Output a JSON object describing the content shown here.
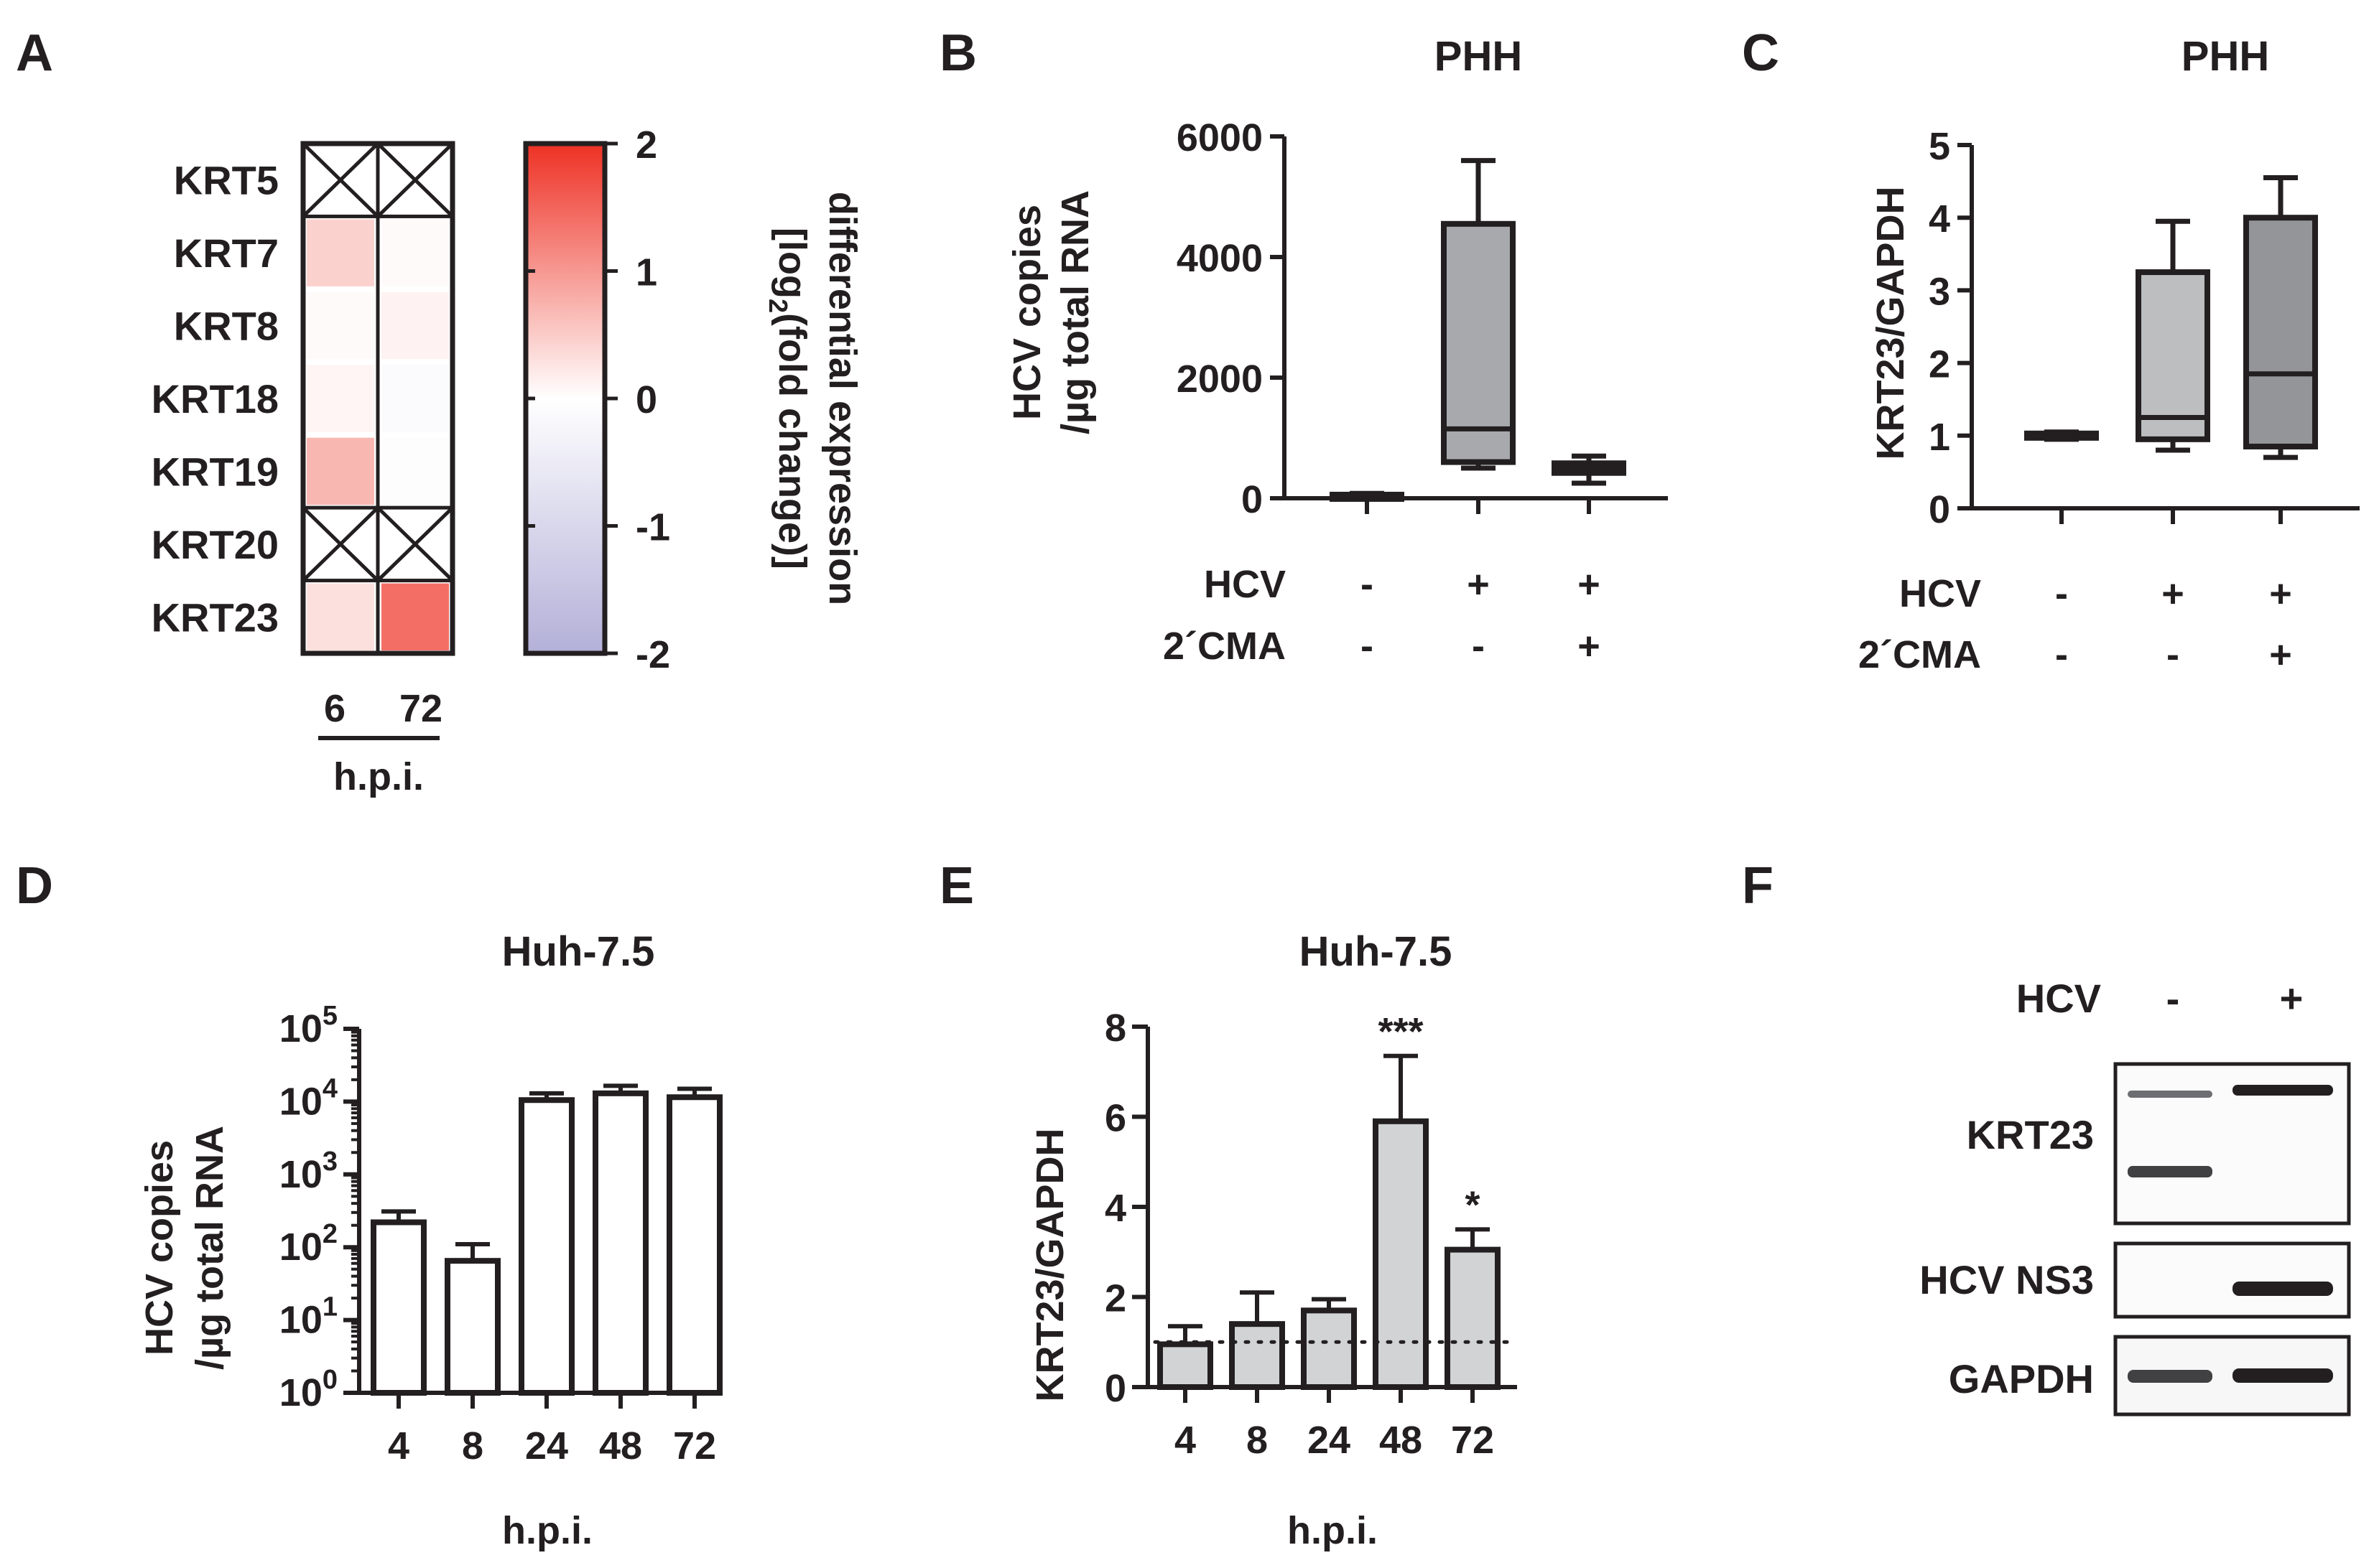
{
  "panels": {
    "A": {
      "label": "A",
      "chart_data": {
        "type": "heatmap",
        "rows": [
          "KRT5",
          "KRT7",
          "KRT8",
          "KRT18",
          "KRT19",
          "KRT20",
          "KRT23"
        ],
        "columns": [
          "6",
          "72"
        ],
        "column_axis_label": "h.p.i.",
        "values": [
          [
            null,
            null
          ],
          [
            0.45,
            0.05
          ],
          [
            0.05,
            0.12
          ],
          [
            0.1,
            -0.1
          ],
          [
            0.7,
            -0.05
          ],
          [
            null,
            null
          ],
          [
            0.3,
            1.4
          ]
        ],
        "colorbar": {
          "min": -2,
          "max": 2,
          "ticks": [
            "2",
            "1",
            "0",
            "-1",
            "-2"
          ],
          "label_parts": [
            "differential expression",
            "[log",
            "2",
            "(fold change)]"
          ],
          "low_color": "#b3b0d8",
          "mid_color": "#ffffff",
          "high_color": "#ee3124"
        }
      }
    },
    "B": {
      "label": "B",
      "chart_data": {
        "type": "box",
        "title": "PHH",
        "ylabel": [
          "HCV copies",
          "/µg total RNA"
        ],
        "ylim": [
          0,
          6000
        ],
        "yticks": [
          "0",
          "2000",
          "4000",
          "6000"
        ],
        "conditions": [
          {
            "name": "HCV",
            "values": [
              "-",
              "+",
              "+"
            ]
          },
          {
            "name": "2´CMA",
            "values": [
              "-",
              "-",
              "+"
            ]
          }
        ],
        "boxes": [
          {
            "min": 0,
            "q1": 20,
            "median": 40,
            "q3": 60,
            "max": 80,
            "fill": "#bcbec0"
          },
          {
            "min": 500,
            "q1": 600,
            "median": 1150,
            "q3": 4550,
            "max": 5600,
            "fill": "#a7a9ac"
          },
          {
            "min": 250,
            "q1": 420,
            "median": 500,
            "q3": 580,
            "max": 700,
            "fill": "#58595b"
          }
        ]
      }
    },
    "C": {
      "label": "C",
      "chart_data": {
        "type": "box",
        "title": "PHH",
        "ylabel": [
          "KRT23/GAPDH"
        ],
        "ylim": [
          0,
          5
        ],
        "yticks": [
          "0",
          "1",
          "2",
          "3",
          "4",
          "5"
        ],
        "conditions": [
          {
            "name": "HCV",
            "values": [
              "-",
              "+",
              "+"
            ]
          },
          {
            "name": "2´CMA",
            "values": [
              "-",
              "-",
              "+"
            ]
          }
        ],
        "boxes": [
          {
            "min": 0.95,
            "q1": 0.97,
            "median": 1.0,
            "q3": 1.03,
            "max": 1.05,
            "fill": "#bcbec0"
          },
          {
            "min": 0.8,
            "q1": 0.95,
            "median": 1.25,
            "q3": 3.25,
            "max": 3.95,
            "fill": "#bcbec0"
          },
          {
            "min": 0.7,
            "q1": 0.85,
            "median": 1.85,
            "q3": 4.0,
            "max": 4.55,
            "fill": "#939598"
          }
        ]
      }
    },
    "D": {
      "label": "D",
      "chart_data": {
        "type": "bar",
        "scale": "log",
        "title": "Huh-7.5",
        "ylabel": [
          "HCV copies",
          "/µg total RNA"
        ],
        "xlabel": "h.p.i.",
        "categories": [
          "4",
          "8",
          "24",
          "48",
          "72"
        ],
        "values": [
          220,
          65,
          10500,
          13000,
          11500
        ],
        "errors": [
          310,
          110,
          13000,
          16500,
          15000
        ],
        "ylim": [
          1,
          100000
        ],
        "yticks_exp": [
          "0",
          "1",
          "2",
          "3",
          "4",
          "5"
        ],
        "ytick_base": "10",
        "bar_fill": "#ffffff"
      }
    },
    "E": {
      "label": "E",
      "chart_data": {
        "type": "bar",
        "title": "Huh-7.5",
        "ylabel": [
          "KRT23/GAPDH"
        ],
        "xlabel": "h.p.i.",
        "categories": [
          "4",
          "8",
          "24",
          "48",
          "72"
        ],
        "values": [
          0.95,
          1.4,
          1.7,
          5.9,
          3.05
        ],
        "errors": [
          1.35,
          2.1,
          1.95,
          7.35,
          3.5
        ],
        "significance": [
          "",
          "",
          "",
          "***",
          "*"
        ],
        "reference_line": 1,
        "ylim": [
          0,
          8
        ],
        "yticks": [
          "0",
          "2",
          "4",
          "6",
          "8"
        ],
        "bar_fill": "#d1d3d4"
      }
    },
    "F": {
      "label": "F",
      "blot": {
        "header_label": "HCV",
        "lanes": [
          "-",
          "+"
        ],
        "rows": [
          "KRT23",
          "HCV NS3",
          "GAPDH"
        ]
      }
    }
  }
}
